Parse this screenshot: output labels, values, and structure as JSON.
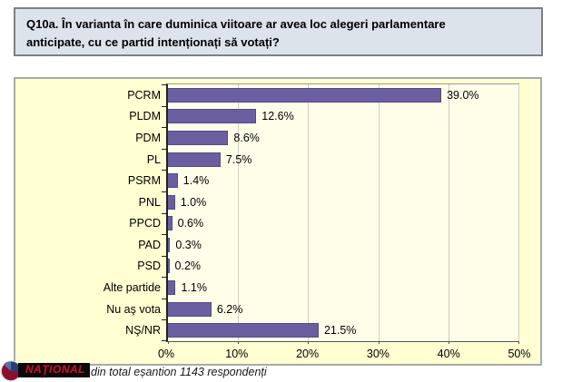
{
  "title": {
    "line1": "Q10a. În varianta în care duminica viitoare ar avea loc alegeri parlamentare",
    "line2": "anticipate, cu ce partid intenționați să votați?"
  },
  "chart_data": {
    "type": "bar",
    "orientation": "horizontal",
    "title": "",
    "xlabel": "",
    "ylabel": "",
    "categories": [
      "PCRM",
      "PLDM",
      "PDM",
      "PL",
      "PSRM",
      "PNL",
      "PPCD",
      "PAD",
      "PSD",
      "Alte partide",
      "Nu aş vota",
      "NŞ/NR"
    ],
    "values": [
      39.0,
      12.6,
      8.6,
      7.5,
      1.4,
      1.0,
      0.6,
      0.3,
      0.2,
      1.1,
      6.2,
      21.5
    ],
    "value_labels": [
      "39.0%",
      "12.6%",
      "8.6%",
      "7.5%",
      "1.4%",
      "1.0%",
      "0.6%",
      "0.3%",
      "0.2%",
      "1.1%",
      "6.2%",
      "21.5%"
    ],
    "x_ticks": [
      "0%",
      "10%",
      "20%",
      "30%",
      "40%",
      "50%"
    ],
    "xlim": [
      0,
      50
    ],
    "grid": "vertical",
    "legend": "none",
    "bar_color": "#6b5ea1",
    "plot_bg": "#ffffe9",
    "chart_bg": "#ffffd2"
  },
  "caption": "Intenția de vot din total eșantion 1143 respondenți",
  "watermark": {
    "text": "NAŢIONAL",
    "bg_color": "#0a0a0a",
    "text_color": "#c41230"
  }
}
